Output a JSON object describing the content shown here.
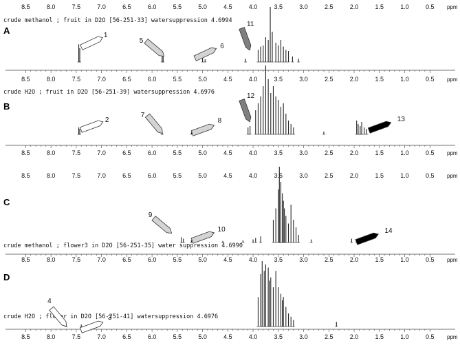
{
  "chart_data": [
    {
      "type": "line",
      "panel": "A",
      "header": "crude methanol ; fruit in D2O [56-251-33] watersuppression 4.6994",
      "unit": "ppm",
      "tick_labels": [
        "8.5",
        "8.0",
        "7.5",
        "7.0",
        "6.5",
        "6.0",
        "5.5",
        "5.0",
        "4.5",
        "4.0",
        "3.5",
        "3.0",
        "2.5",
        "2.0",
        "1.5",
        "1.0",
        "0.5"
      ],
      "xlim": [
        8.9,
        0.0
      ],
      "peaks": [
        {
          "x": 7.45,
          "h": 0.32
        },
        {
          "x": 7.43,
          "h": 0.25
        },
        {
          "x": 5.8,
          "h": 0.13
        },
        {
          "x": 5.78,
          "h": 0.1
        },
        {
          "x": 5.0,
          "h": 0.07
        },
        {
          "x": 4.95,
          "h": 0.05
        },
        {
          "x": 4.15,
          "h": 0.06
        },
        {
          "x": 3.9,
          "h": 0.22
        },
        {
          "x": 3.85,
          "h": 0.28
        },
        {
          "x": 3.8,
          "h": 0.3
        },
        {
          "x": 3.75,
          "h": 0.45
        },
        {
          "x": 3.7,
          "h": 0.4
        },
        {
          "x": 3.66,
          "h": 1.0
        },
        {
          "x": 3.62,
          "h": 0.55
        },
        {
          "x": 3.55,
          "h": 0.35
        },
        {
          "x": 3.5,
          "h": 0.3
        },
        {
          "x": 3.45,
          "h": 0.4
        },
        {
          "x": 3.4,
          "h": 0.28
        },
        {
          "x": 3.35,
          "h": 0.22
        },
        {
          "x": 3.3,
          "h": 0.2
        },
        {
          "x": 3.22,
          "h": 0.1
        },
        {
          "x": 3.1,
          "h": 0.06
        }
      ],
      "annotations": [
        {
          "label": "1",
          "x": 7.2,
          "style": "white"
        },
        {
          "label": "5",
          "x": 5.95,
          "style": "lightgray"
        },
        {
          "label": "6",
          "x": 4.95,
          "style": "lightgray"
        },
        {
          "label": "11",
          "x": 4.15,
          "style": "gray"
        }
      ]
    },
    {
      "type": "line",
      "panel": "B",
      "header": "crude H2O ; fruit in D2O [56-251-39] watersuppression 4.6976",
      "unit": "ppm",
      "tick_labels": [
        "8.5",
        "8.0",
        "7.5",
        "7.0",
        "6.5",
        "6.0",
        "5.5",
        "5.0",
        "4.5",
        "4.0",
        "3.5",
        "3.0",
        "2.5",
        "2.0",
        "1.5",
        "1.0",
        "0.5"
      ],
      "xlim": [
        8.9,
        0.0
      ],
      "peaks": [
        {
          "x": 7.45,
          "h": 0.1
        },
        {
          "x": 7.43,
          "h": 0.08
        },
        {
          "x": 5.8,
          "h": 0.04
        },
        {
          "x": 5.22,
          "h": 0.03
        },
        {
          "x": 4.1,
          "h": 0.1
        },
        {
          "x": 4.06,
          "h": 0.12
        },
        {
          "x": 3.95,
          "h": 0.35
        },
        {
          "x": 3.9,
          "h": 0.45
        },
        {
          "x": 3.85,
          "h": 0.55
        },
        {
          "x": 3.8,
          "h": 0.7
        },
        {
          "x": 3.75,
          "h": 1.0
        },
        {
          "x": 3.7,
          "h": 0.8
        },
        {
          "x": 3.65,
          "h": 0.6
        },
        {
          "x": 3.6,
          "h": 0.7
        },
        {
          "x": 3.55,
          "h": 0.55
        },
        {
          "x": 3.5,
          "h": 0.5
        },
        {
          "x": 3.45,
          "h": 0.4
        },
        {
          "x": 3.4,
          "h": 0.45
        },
        {
          "x": 3.35,
          "h": 0.3
        },
        {
          "x": 3.3,
          "h": 0.2
        },
        {
          "x": 3.25,
          "h": 0.15
        },
        {
          "x": 3.2,
          "h": 0.1
        },
        {
          "x": 2.6,
          "h": 0.04
        },
        {
          "x": 1.95,
          "h": 0.2
        },
        {
          "x": 1.92,
          "h": 0.15
        },
        {
          "x": 1.88,
          "h": 0.12
        },
        {
          "x": 1.85,
          "h": 0.18
        },
        {
          "x": 1.8,
          "h": 0.1
        },
        {
          "x": 1.75,
          "h": 0.08
        }
      ],
      "annotations": [
        {
          "label": "2",
          "x": 7.2,
          "style": "white"
        },
        {
          "label": "7",
          "x": 5.95,
          "style": "lightgray"
        },
        {
          "label": "8",
          "x": 5.0,
          "style": "lightgray"
        },
        {
          "label": "12",
          "x": 4.15,
          "style": "gray"
        },
        {
          "label": "13",
          "x": 1.5,
          "style": "black"
        }
      ]
    },
    {
      "type": "line",
      "panel": "C",
      "header": "crude methanol ; flower3 in D2O [56-251-35] water suppression 4.6990",
      "unit": "ppm",
      "tick_labels": [
        "8.5",
        "8.0",
        "7.5",
        "7.0",
        "6.5",
        "6.0",
        "5.5",
        "5.0",
        "4.5",
        "4.0",
        "3.5",
        "3.0",
        "2.5",
        "2.0",
        "1.5",
        "1.0",
        "0.5"
      ],
      "xlim": [
        8.9,
        0.0
      ],
      "peaks": [
        {
          "x": 5.42,
          "h": 0.07
        },
        {
          "x": 5.38,
          "h": 0.05
        },
        {
          "x": 5.22,
          "h": 0.03
        },
        {
          "x": 4.6,
          "h": 0.02
        },
        {
          "x": 4.2,
          "h": 0.03
        },
        {
          "x": 4.0,
          "h": 0.04
        },
        {
          "x": 3.95,
          "h": 0.06
        },
        {
          "x": 3.85,
          "h": 0.08
        },
        {
          "x": 3.6,
          "h": 0.3
        },
        {
          "x": 3.55,
          "h": 0.45
        },
        {
          "x": 3.5,
          "h": 0.7
        },
        {
          "x": 3.48,
          "h": 1.0
        },
        {
          "x": 3.45,
          "h": 0.8
        },
        {
          "x": 3.42,
          "h": 0.65
        },
        {
          "x": 3.4,
          "h": 0.55
        },
        {
          "x": 3.38,
          "h": 0.45
        },
        {
          "x": 3.35,
          "h": 0.35
        },
        {
          "x": 3.3,
          "h": 0.25
        },
        {
          "x": 3.25,
          "h": 0.5
        },
        {
          "x": 3.2,
          "h": 0.3
        },
        {
          "x": 3.15,
          "h": 0.2
        },
        {
          "x": 3.1,
          "h": 0.1
        },
        {
          "x": 2.85,
          "h": 0.04
        },
        {
          "x": 2.05,
          "h": 0.05
        },
        {
          "x": 1.95,
          "h": 0.03
        }
      ],
      "annotations": [
        {
          "label": "9",
          "x": 5.8,
          "style": "lightgray"
        },
        {
          "label": "10",
          "x": 5.0,
          "style": "lightgray"
        },
        {
          "label": "14",
          "x": 1.75,
          "style": "black"
        }
      ]
    },
    {
      "type": "line",
      "panel": "D",
      "header": "crude H2O ; flower in D2O [56-251-41] watersuppression 4.6976",
      "unit": "ppm",
      "tick_labels": [
        "8.5",
        "8.0",
        "7.5",
        "7.0",
        "6.5",
        "6.0",
        "5.5",
        "5.0",
        "4.5",
        "4.0",
        "3.5",
        "3.0",
        "2.5",
        "2.0",
        "1.5",
        "1.0",
        "0.5"
      ],
      "xlim": [
        8.9,
        0.0
      ],
      "peaks": [
        {
          "x": 7.7,
          "h": 0.04
        },
        {
          "x": 7.4,
          "h": 0.03
        },
        {
          "x": 3.9,
          "h": 0.45
        },
        {
          "x": 3.85,
          "h": 0.8
        },
        {
          "x": 3.82,
          "h": 1.0
        },
        {
          "x": 3.78,
          "h": 0.85
        },
        {
          "x": 3.75,
          "h": 0.95
        },
        {
          "x": 3.7,
          "h": 0.9
        },
        {
          "x": 3.68,
          "h": 0.7
        },
        {
          "x": 3.65,
          "h": 0.75
        },
        {
          "x": 3.6,
          "h": 0.6
        },
        {
          "x": 3.55,
          "h": 0.85
        },
        {
          "x": 3.5,
          "h": 0.6
        },
        {
          "x": 3.45,
          "h": 0.5
        },
        {
          "x": 3.42,
          "h": 0.4
        },
        {
          "x": 3.4,
          "h": 0.45
        },
        {
          "x": 3.35,
          "h": 0.3
        },
        {
          "x": 3.3,
          "h": 0.2
        },
        {
          "x": 3.25,
          "h": 0.15
        },
        {
          "x": 3.2,
          "h": 0.1
        },
        {
          "x": 2.35,
          "h": 0.07
        }
      ],
      "annotations": [
        {
          "label": "4",
          "x": 7.85,
          "style": "white"
        },
        {
          "label": "3",
          "x": 7.2,
          "style": "white"
        }
      ]
    }
  ],
  "colors": {
    "white": "#ffffff",
    "lightgray": "#d4d4d4",
    "gray": "#7f7f7f",
    "black": "#000000",
    "line": "#222222"
  }
}
